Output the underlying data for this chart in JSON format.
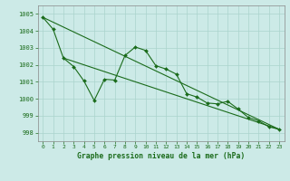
{
  "title": "Graphe pression niveau de la mer (hPa)",
  "bg_color": "#cceae7",
  "grid_color": "#aad4cc",
  "line_color": "#1a6b1a",
  "xlim": [
    -0.5,
    23.5
  ],
  "ylim": [
    997.5,
    1005.5
  ],
  "yticks": [
    998,
    999,
    1000,
    1001,
    1002,
    1003,
    1004,
    1005
  ],
  "xticks": [
    0,
    1,
    2,
    3,
    4,
    5,
    6,
    7,
    8,
    9,
    10,
    11,
    12,
    13,
    14,
    15,
    16,
    17,
    18,
    19,
    20,
    21,
    22,
    23
  ],
  "y_main": [
    1004.8,
    1004.1,
    1002.4,
    1001.9,
    1001.05,
    999.9,
    1001.15,
    1001.1,
    1002.55,
    1003.05,
    1002.85,
    1001.95,
    1001.75,
    1001.45,
    1000.3,
    1000.1,
    999.75,
    999.7,
    999.85,
    999.4,
    998.9,
    998.7,
    998.35,
    998.2
  ],
  "trend1_x": [
    0,
    23
  ],
  "trend1_y": [
    1004.8,
    998.2
  ],
  "trend2_x": [
    2,
    23
  ],
  "trend2_y": [
    1002.4,
    998.2
  ]
}
